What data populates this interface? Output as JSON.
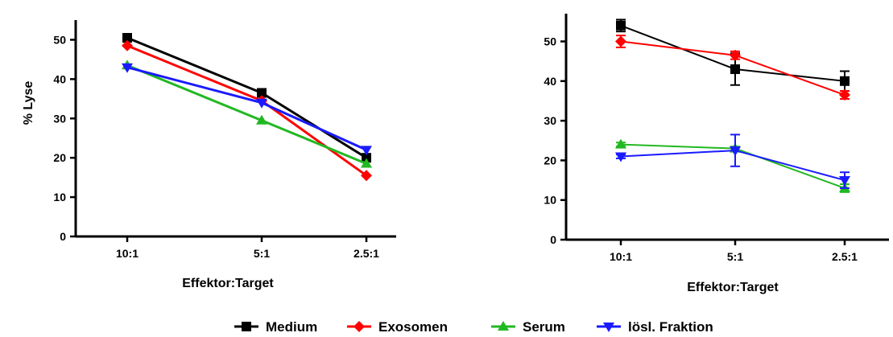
{
  "figure": {
    "legend": [
      {
        "label": "Medium",
        "color": "#000000",
        "marker": "square"
      },
      {
        "label": "Exosomen",
        "color": "#ff0000",
        "marker": "diamond"
      },
      {
        "label": "Serum",
        "color": "#22b822",
        "marker": "triangle-up"
      },
      {
        "label": "lösl. Fraktion",
        "color": "#1a1aff",
        "marker": "triangle-down"
      }
    ]
  },
  "chart_data": [
    {
      "type": "line",
      "categories": [
        "10:1",
        "5:1",
        "2.5:1"
      ],
      "xlabel": "Effektor:Target",
      "ylabel": "% Lyse",
      "ylim": [
        0,
        55
      ],
      "yticks": [
        "0",
        "10",
        "20",
        "30",
        "40",
        "50"
      ],
      "grid": false,
      "legend_position": "bottom-center",
      "series": [
        {
          "name": "Medium",
          "color": "#000000",
          "marker": "square",
          "values": [
            50.5,
            36.5,
            20
          ]
        },
        {
          "name": "Exosomen",
          "color": "#ff0000",
          "marker": "diamond",
          "values": [
            48.5,
            34.5,
            15.5
          ]
        },
        {
          "name": "Serum",
          "color": "#22b822",
          "marker": "triangle-up",
          "values": [
            43.5,
            29.5,
            18.5
          ]
        },
        {
          "name": "lösl. Fraktion",
          "color": "#1a1aff",
          "marker": "triangle-down",
          "values": [
            43,
            34,
            22
          ]
        }
      ]
    },
    {
      "type": "line",
      "categories": [
        "10:1",
        "5:1",
        "2.5:1"
      ],
      "xlabel": "Effektor:Target",
      "ylabel": "",
      "ylim": [
        0,
        57
      ],
      "yticks": [
        "0",
        "10",
        "20",
        "30",
        "40",
        "50"
      ],
      "grid": false,
      "legend_position": "bottom-center",
      "series": [
        {
          "name": "Medium",
          "color": "#000000",
          "marker": "square",
          "values": [
            54,
            43,
            40
          ],
          "errors": [
            1.5,
            4,
            2.5
          ]
        },
        {
          "name": "Exosomen",
          "color": "#ff0000",
          "marker": "diamond",
          "values": [
            50,
            46.5,
            36.5
          ],
          "errors": [
            1.5,
            1,
            1
          ]
        },
        {
          "name": "Serum",
          "color": "#22b822",
          "marker": "triangle-up",
          "values": [
            24,
            23,
            13
          ],
          "errors": [
            0.5,
            0.5,
            1
          ]
        },
        {
          "name": "lösl. Fraktion",
          "color": "#1a1aff",
          "marker": "triangle-down",
          "values": [
            21,
            22.5,
            15
          ],
          "errors": [
            0.5,
            4,
            2
          ]
        }
      ]
    }
  ]
}
